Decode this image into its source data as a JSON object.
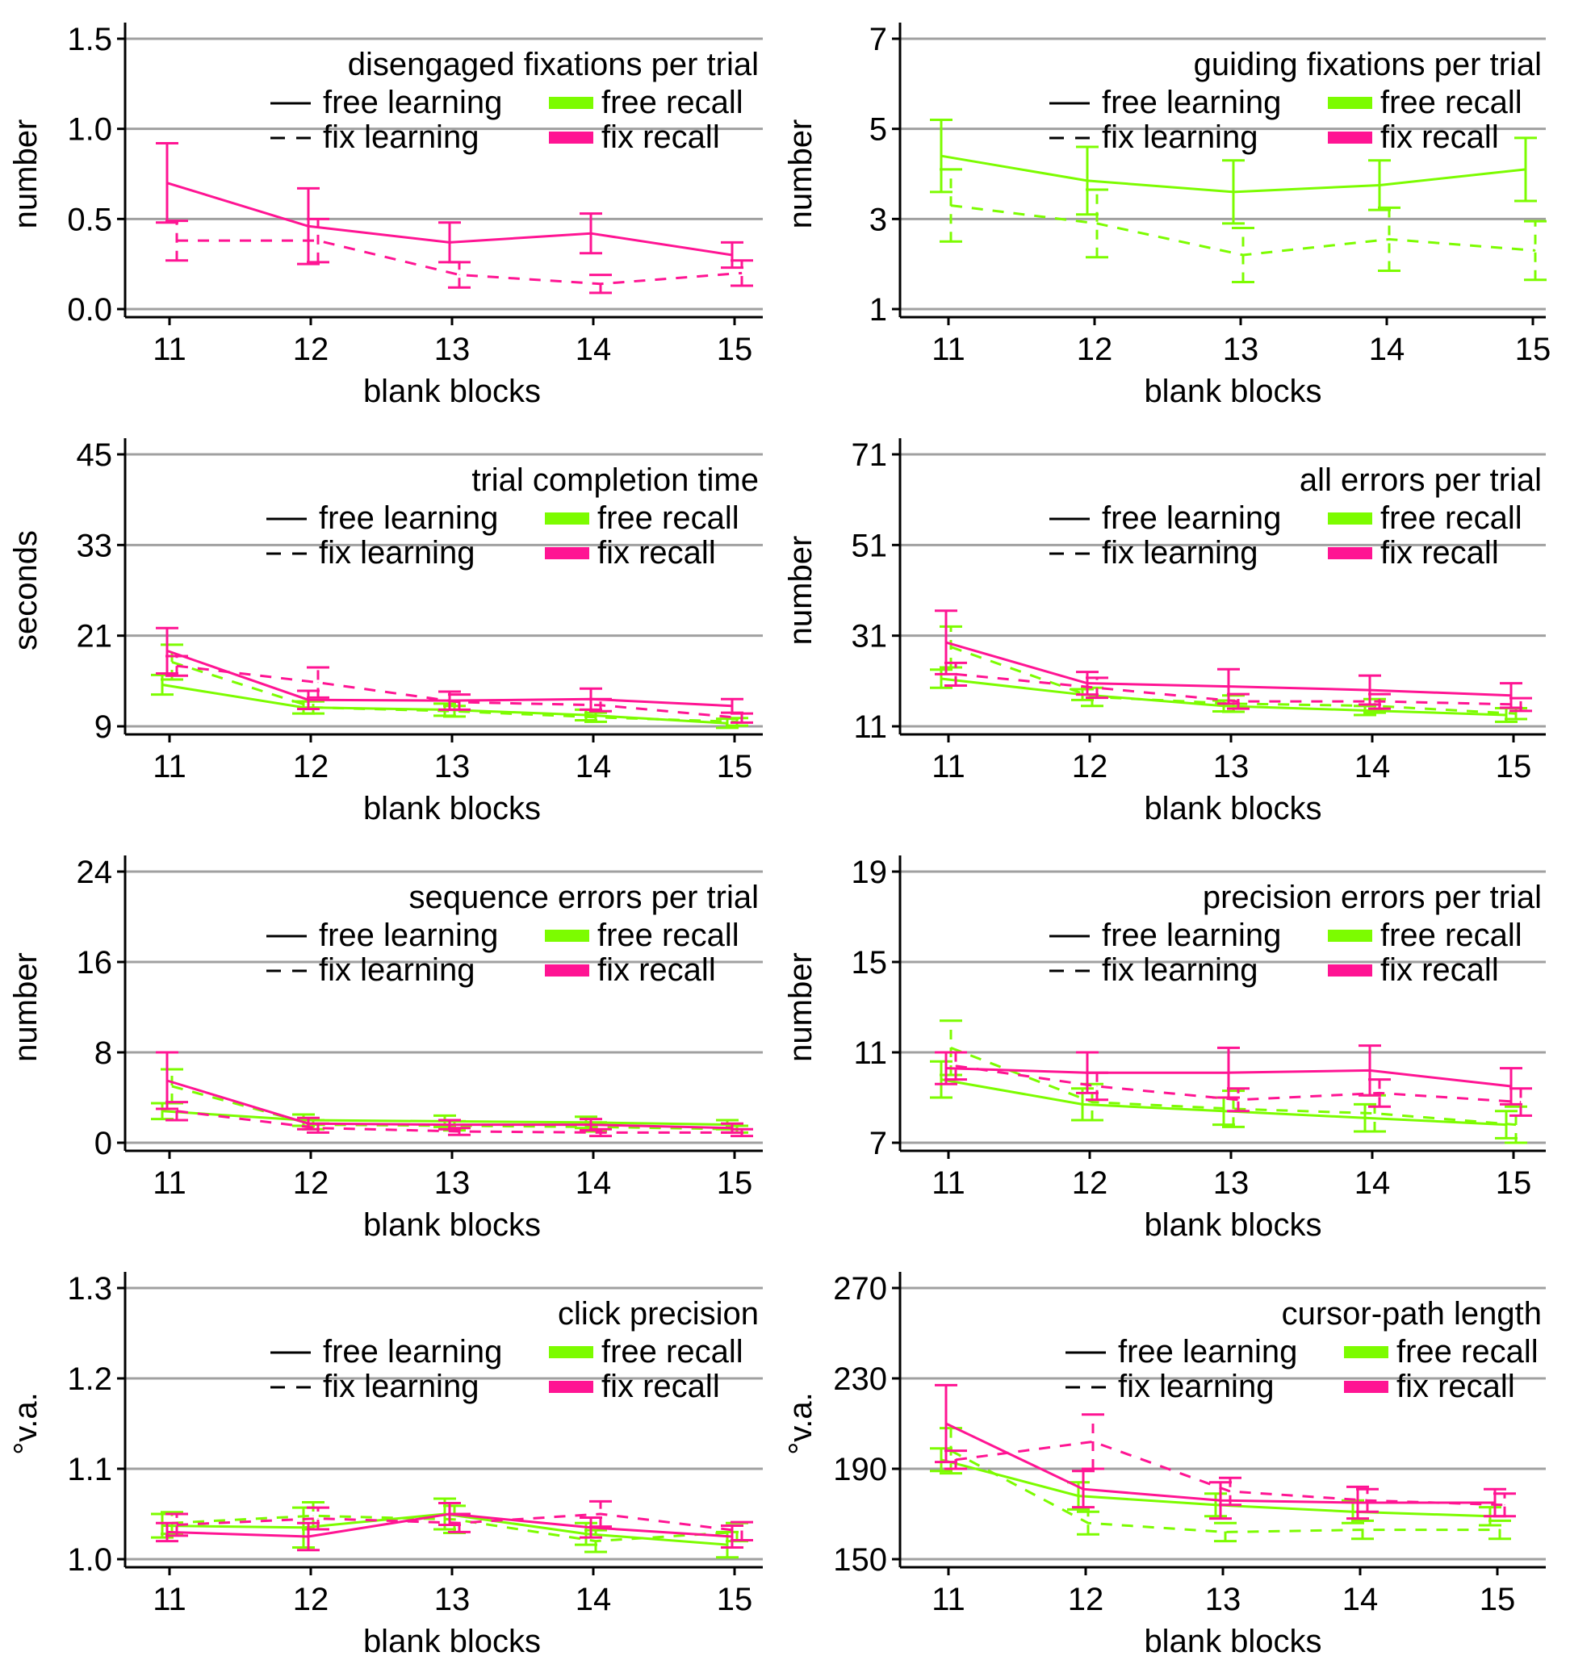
{
  "colors": {
    "free": "#7cfc00",
    "fix": "#ff1493",
    "grid": "#a0a0a0",
    "axis": "#000000",
    "legend_line": "#000000"
  },
  "legend_labels": {
    "free_learning": "free learning",
    "fix_learning": "fix learning",
    "free_recall": "free recall",
    "fix_recall": "fix recall"
  },
  "chart_data": [
    {
      "type": "line",
      "title": "disengaged fixations per trial",
      "xlabel": "blank blocks",
      "ylabel": "number",
      "x": [
        "11",
        "12",
        "13",
        "14",
        "15"
      ],
      "ylim": [
        0.0,
        1.5
      ],
      "yticks": [
        0.0,
        0.5,
        1.0,
        1.5
      ],
      "ytick_labels": [
        "0.0",
        "0.5",
        "1.0",
        "1.5"
      ],
      "grid": true,
      "series": [
        {
          "name": "free learning / fix recall",
          "color_key": "fix",
          "dash": "solid",
          "values": [
            0.7,
            0.46,
            0.37,
            0.42,
            0.3
          ],
          "err": [
            0.22,
            0.21,
            0.11,
            0.11,
            0.07
          ]
        },
        {
          "name": "fix learning / fix recall",
          "color_key": "fix",
          "dash": "dashed",
          "values": [
            0.38,
            0.38,
            0.19,
            0.14,
            0.2
          ],
          "err": [
            0.11,
            0.12,
            0.07,
            0.05,
            0.07
          ]
        }
      ]
    },
    {
      "type": "line",
      "title": "guiding fixations per trial",
      "xlabel": "blank blocks",
      "ylabel": "number",
      "x": [
        "11",
        "12",
        "13",
        "14",
        "15"
      ],
      "ylim": [
        1,
        7
      ],
      "yticks": [
        1,
        3,
        5,
        7
      ],
      "ytick_labels": [
        "1",
        "3",
        "5",
        "7"
      ],
      "grid": true,
      "series": [
        {
          "name": "free learning / free recall",
          "color_key": "free",
          "dash": "solid",
          "values": [
            4.4,
            3.85,
            3.6,
            3.75,
            4.1
          ],
          "err": [
            0.8,
            0.75,
            0.7,
            0.55,
            0.7
          ]
        },
        {
          "name": "fix learning / free recall",
          "color_key": "free",
          "dash": "dashed",
          "values": [
            3.3,
            2.9,
            2.2,
            2.55,
            2.3
          ],
          "err": [
            0.8,
            0.75,
            0.6,
            0.7,
            0.65
          ]
        }
      ]
    },
    {
      "type": "line",
      "title": "trial completion time",
      "xlabel": "blank blocks",
      "ylabel": "seconds",
      "x": [
        "11",
        "12",
        "13",
        "14",
        "15"
      ],
      "ylim": [
        9,
        45
      ],
      "yticks": [
        9,
        21,
        33,
        45
      ],
      "ytick_labels": [
        "9",
        "21",
        "33",
        "45"
      ],
      "grid": true,
      "series": [
        {
          "name": "free learning / free recall",
          "color_key": "free",
          "dash": "solid",
          "values": [
            14.5,
            11.5,
            11.2,
            10.5,
            9.4
          ],
          "err": [
            1.3,
            0.8,
            0.8,
            0.7,
            0.6
          ]
        },
        {
          "name": "fix learning / free recall",
          "color_key": "free",
          "dash": "dashed",
          "values": [
            17.5,
            11.5,
            11.0,
            10.2,
            9.6
          ],
          "err": [
            2.3,
            0.8,
            0.7,
            0.6,
            0.5
          ]
        },
        {
          "name": "free learning / fix recall",
          "color_key": "fix",
          "dash": "solid",
          "values": [
            19.0,
            12.5,
            12.4,
            12.6,
            11.7
          ],
          "err": [
            3.0,
            1.2,
            1.2,
            1.4,
            0.9
          ]
        },
        {
          "name": "fix learning / fix recall",
          "color_key": "fix",
          "dash": "dashed",
          "values": [
            17.0,
            14.8,
            12.2,
            11.8,
            10.1
          ],
          "err": [
            1.3,
            2.0,
            1.0,
            0.8,
            0.6
          ]
        }
      ]
    },
    {
      "type": "line",
      "title": "all errors per trial",
      "xlabel": "blank blocks",
      "ylabel": "number",
      "x": [
        "11",
        "12",
        "13",
        "14",
        "15"
      ],
      "ylim": [
        11,
        71
      ],
      "yticks": [
        11,
        31,
        51,
        71
      ],
      "ytick_labels": [
        "11",
        "31",
        "51",
        "71"
      ],
      "grid": true,
      "series": [
        {
          "name": "free learning / free recall",
          "color_key": "free",
          "dash": "solid",
          "values": [
            21.5,
            18.0,
            15.5,
            14.5,
            13.5
          ],
          "err": [
            2.0,
            1.2,
            1.2,
            1.0,
            1.5
          ]
        },
        {
          "name": "fix learning / free recall",
          "color_key": "free",
          "dash": "dashed",
          "values": [
            28.5,
            17.5,
            16.0,
            15.5,
            13.8
          ],
          "err": [
            4.5,
            2.0,
            1.8,
            1.5,
            1.2
          ]
        },
        {
          "name": "free learning / fix recall",
          "color_key": "fix",
          "dash": "solid",
          "values": [
            29.5,
            20.5,
            19.8,
            19.0,
            17.8
          ],
          "err": [
            7.0,
            2.5,
            3.8,
            3.2,
            2.7
          ]
        },
        {
          "name": "fix learning / fix recall",
          "color_key": "fix",
          "dash": "dashed",
          "values": [
            22.5,
            19.5,
            16.5,
            16.5,
            15.8
          ],
          "err": [
            2.5,
            2.2,
            1.6,
            1.6,
            1.4
          ]
        }
      ]
    },
    {
      "type": "line",
      "title": "sequence errors per trial",
      "xlabel": "blank blocks",
      "ylabel": "number",
      "x": [
        "11",
        "12",
        "13",
        "14",
        "15"
      ],
      "ylim": [
        0,
        24
      ],
      "yticks": [
        0,
        8,
        16,
        24
      ],
      "ytick_labels": [
        "0",
        "8",
        "16",
        "24"
      ],
      "grid": true,
      "series": [
        {
          "name": "free learning / free recall",
          "color_key": "free",
          "dash": "solid",
          "values": [
            2.8,
            2.0,
            1.9,
            1.8,
            1.6
          ],
          "err": [
            0.7,
            0.5,
            0.5,
            0.5,
            0.4
          ]
        },
        {
          "name": "fix learning / free recall",
          "color_key": "free",
          "dash": "dashed",
          "values": [
            5.0,
            1.6,
            1.5,
            1.4,
            1.2
          ],
          "err": [
            1.5,
            0.4,
            0.4,
            0.4,
            0.3
          ]
        },
        {
          "name": "free learning / fix recall",
          "color_key": "fix",
          "dash": "solid",
          "values": [
            5.5,
            1.7,
            1.6,
            1.6,
            1.3
          ],
          "err": [
            2.5,
            0.5,
            0.4,
            0.5,
            0.4
          ]
        },
        {
          "name": "fix learning / fix recall",
          "color_key": "fix",
          "dash": "dashed",
          "values": [
            2.8,
            1.3,
            1.0,
            0.9,
            0.9
          ],
          "err": [
            0.8,
            0.4,
            0.3,
            0.3,
            0.3
          ]
        }
      ]
    },
    {
      "type": "line",
      "title": "precision errors per trial",
      "xlabel": "blank blocks",
      "ylabel": "number",
      "x": [
        "11",
        "12",
        "13",
        "14",
        "15"
      ],
      "ylim": [
        7,
        19
      ],
      "yticks": [
        7,
        11,
        15,
        19
      ],
      "ytick_labels": [
        "7",
        "11",
        "15",
        "19"
      ],
      "grid": true,
      "series": [
        {
          "name": "free learning / free recall",
          "color_key": "free",
          "dash": "solid",
          "values": [
            9.8,
            8.7,
            8.4,
            8.1,
            7.8
          ],
          "err": [
            0.8,
            0.7,
            0.6,
            0.6,
            0.6
          ]
        },
        {
          "name": "fix learning / free recall",
          "color_key": "free",
          "dash": "dashed",
          "values": [
            11.2,
            8.8,
            8.5,
            8.3,
            7.8
          ],
          "err": [
            1.2,
            0.8,
            0.8,
            0.8,
            0.8
          ]
        },
        {
          "name": "free learning / fix recall",
          "color_key": "fix",
          "dash": "solid",
          "values": [
            10.3,
            10.1,
            10.1,
            10.2,
            9.5
          ],
          "err": [
            0.7,
            0.9,
            1.1,
            1.1,
            0.8
          ]
        },
        {
          "name": "fix learning / fix recall",
          "color_key": "fix",
          "dash": "dashed",
          "values": [
            10.4,
            9.5,
            8.9,
            9.2,
            8.8
          ],
          "err": [
            0.6,
            0.6,
            0.5,
            0.6,
            0.6
          ]
        }
      ]
    },
    {
      "type": "line",
      "title": "click precision",
      "xlabel": "blank blocks",
      "ylabel": "°v.a.",
      "x": [
        "11",
        "12",
        "13",
        "14",
        "15"
      ],
      "ylim": [
        1.0,
        1.3
      ],
      "yticks": [
        1.0,
        1.1,
        1.2,
        1.3
      ],
      "ytick_labels": [
        "1.0",
        "1.1",
        "1.2",
        "1.3"
      ],
      "grid": true,
      "series": [
        {
          "name": "free learning / free recall",
          "color_key": "free",
          "dash": "solid",
          "values": [
            1.037,
            1.035,
            1.05,
            1.028,
            1.016
          ],
          "err": [
            0.013,
            0.022,
            0.017,
            0.012,
            0.014
          ]
        },
        {
          "name": "fix learning / free recall",
          "color_key": "free",
          "dash": "dashed",
          "values": [
            1.04,
            1.048,
            1.044,
            1.02,
            1.03
          ],
          "err": [
            0.012,
            0.015,
            0.015,
            0.012,
            0.01
          ]
        },
        {
          "name": "free learning / fix recall",
          "color_key": "fix",
          "dash": "solid",
          "values": [
            1.03,
            1.025,
            1.05,
            1.035,
            1.025
          ],
          "err": [
            0.01,
            0.015,
            0.012,
            0.011,
            0.012
          ]
        },
        {
          "name": "fix learning / fix recall",
          "color_key": "fix",
          "dash": "dashed",
          "values": [
            1.038,
            1.045,
            1.04,
            1.05,
            1.031
          ],
          "err": [
            0.012,
            0.012,
            0.01,
            0.014,
            0.01
          ]
        }
      ]
    },
    {
      "type": "line",
      "title": "cursor-path length",
      "xlabel": "blank blocks",
      "ylabel": "°v.a.",
      "x": [
        "11",
        "12",
        "13",
        "14",
        "15"
      ],
      "ylim": [
        150,
        270
      ],
      "yticks": [
        150,
        190,
        230,
        270
      ],
      "ytick_labels": [
        "150",
        "190",
        "230",
        "270"
      ],
      "grid": true,
      "series": [
        {
          "name": "free learning / free recall",
          "color_key": "free",
          "dash": "solid",
          "values": [
            194,
            178,
            174,
            171,
            169
          ],
          "err": [
            5,
            6,
            5,
            5,
            4
          ]
        },
        {
          "name": "fix learning / free recall",
          "color_key": "free",
          "dash": "dashed",
          "values": [
            198,
            166,
            162,
            163,
            163
          ],
          "err": [
            10,
            5,
            4,
            4,
            4
          ]
        },
        {
          "name": "free learning / fix recall",
          "color_key": "fix",
          "dash": "solid",
          "values": [
            210,
            181,
            176,
            175,
            175
          ],
          "err": [
            17,
            8,
            8,
            7,
            6
          ]
        },
        {
          "name": "fix learning / fix recall",
          "color_key": "fix",
          "dash": "dashed",
          "values": [
            194,
            202,
            180,
            176,
            174
          ],
          "err": [
            4,
            12,
            6,
            5,
            5
          ]
        }
      ]
    }
  ]
}
